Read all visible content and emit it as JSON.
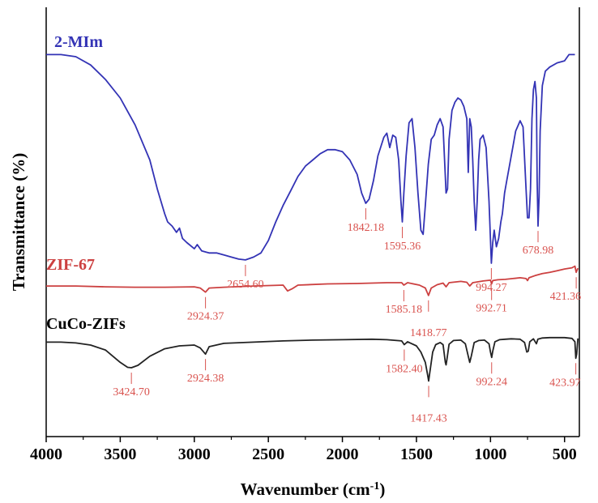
{
  "chart_data": {
    "type": "line",
    "xlabel": "Wavenumber (cm",
    "xlabel_sup": "-1",
    "xlabel_end": ")",
    "ylabel": "Transmittance (%)",
    "xlim": [
      4000,
      400
    ],
    "x_reversed": true,
    "x_ticks": [
      4000,
      3500,
      3000,
      2500,
      2000,
      1500,
      1000,
      500
    ],
    "x_tick_labels": [
      "4000",
      "3500",
      "3000",
      "2500",
      "2000",
      "1500",
      "1000",
      "500"
    ],
    "ylim": [
      0,
      100
    ],
    "y_ticks_shown": false,
    "grid": false,
    "colors": {
      "peak_annotation": "#d9534f",
      "axis": "#000000"
    },
    "series": [
      {
        "name": "2-MIm",
        "color": "#3333b5",
        "label_color": "#3333b5",
        "points": [
          [
            4000,
            90.5
          ],
          [
            3900,
            90.5
          ],
          [
            3800,
            90
          ],
          [
            3700,
            88
          ],
          [
            3600,
            84.5
          ],
          [
            3500,
            80
          ],
          [
            3400,
            73.5
          ],
          [
            3300,
            65
          ],
          [
            3250,
            58
          ],
          [
            3200,
            52
          ],
          [
            3180,
            50
          ],
          [
            3150,
            49
          ],
          [
            3120,
            47.5
          ],
          [
            3100,
            48.5
          ],
          [
            3080,
            46
          ],
          [
            3050,
            45
          ],
          [
            3000,
            43.5
          ],
          [
            2980,
            44.5
          ],
          [
            2950,
            43
          ],
          [
            2900,
            42.5
          ],
          [
            2850,
            42.5
          ],
          [
            2800,
            42
          ],
          [
            2750,
            41.5
          ],
          [
            2700,
            41
          ],
          [
            2654.6,
            40.8
          ],
          [
            2600,
            41.5
          ],
          [
            2550,
            42.5
          ],
          [
            2500,
            45.5
          ],
          [
            2450,
            50
          ],
          [
            2400,
            54
          ],
          [
            2350,
            57.5
          ],
          [
            2300,
            61
          ],
          [
            2250,
            63.5
          ],
          [
            2200,
            65
          ],
          [
            2150,
            66.5
          ],
          [
            2100,
            67.5
          ],
          [
            2050,
            67.5
          ],
          [
            2000,
            67
          ],
          [
            1950,
            65
          ],
          [
            1900,
            61.5
          ],
          [
            1870,
            57
          ],
          [
            1842.18,
            54.5
          ],
          [
            1820,
            55.5
          ],
          [
            1790,
            60
          ],
          [
            1760,
            66
          ],
          [
            1720,
            70.5
          ],
          [
            1700,
            71.5
          ],
          [
            1680,
            68
          ],
          [
            1660,
            71
          ],
          [
            1640,
            70.5
          ],
          [
            1620,
            65
          ],
          [
            1605,
            55
          ],
          [
            1595.36,
            50
          ],
          [
            1585,
            57
          ],
          [
            1570,
            66
          ],
          [
            1550,
            74
          ],
          [
            1530,
            75
          ],
          [
            1510,
            68
          ],
          [
            1490,
            57
          ],
          [
            1470,
            48
          ],
          [
            1455,
            47
          ],
          [
            1440,
            54
          ],
          [
            1420,
            64
          ],
          [
            1400,
            70
          ],
          [
            1380,
            71
          ],
          [
            1360,
            73.5
          ],
          [
            1340,
            75
          ],
          [
            1320,
            73
          ],
          [
            1300,
            57
          ],
          [
            1290,
            58
          ],
          [
            1280,
            70
          ],
          [
            1260,
            77
          ],
          [
            1240,
            79
          ],
          [
            1220,
            80
          ],
          [
            1200,
            79.5
          ],
          [
            1180,
            78
          ],
          [
            1160,
            75
          ],
          [
            1150,
            62
          ],
          [
            1140,
            75
          ],
          [
            1130,
            73
          ],
          [
            1120,
            65
          ],
          [
            1110,
            55
          ],
          [
            1100,
            48
          ],
          [
            1090,
            55
          ],
          [
            1080,
            65
          ],
          [
            1070,
            70
          ],
          [
            1050,
            71
          ],
          [
            1030,
            68
          ],
          [
            1010,
            55
          ],
          [
            994.27,
            40
          ],
          [
            985,
            45
          ],
          [
            975,
            48
          ],
          [
            960,
            44
          ],
          [
            945,
            46
          ],
          [
            930,
            50
          ],
          [
            920,
            52
          ],
          [
            905,
            57
          ],
          [
            890,
            60
          ],
          [
            870,
            64
          ],
          [
            850,
            68
          ],
          [
            830,
            72
          ],
          [
            800,
            74.5
          ],
          [
            780,
            73
          ],
          [
            760,
            58
          ],
          [
            750,
            51
          ],
          [
            740,
            51
          ],
          [
            730,
            58
          ],
          [
            720,
            75
          ],
          [
            710,
            82
          ],
          [
            700,
            84
          ],
          [
            690,
            80
          ],
          [
            685,
            60
          ],
          [
            678.98,
            49
          ],
          [
            672,
            56
          ],
          [
            665,
            72
          ],
          [
            650,
            83
          ],
          [
            630,
            86.5
          ],
          [
            600,
            87.5
          ],
          [
            550,
            88.5
          ],
          [
            500,
            89
          ],
          [
            470,
            90.5
          ],
          [
            430,
            90.5
          ]
        ],
        "annotations": [
          {
            "x": 2654.6,
            "label": "2654.60",
            "label_pos": "below"
          },
          {
            "x": 1842.18,
            "label": "1842.18",
            "label_pos": "below"
          },
          {
            "x": 1595.36,
            "label": "1595.36",
            "label_pos": "below"
          },
          {
            "x": 994.27,
            "label": "994.27",
            "label_pos": "below"
          },
          {
            "x": 678.98,
            "label": "678.98",
            "label_pos": "below"
          }
        ]
      },
      {
        "name": "ZIF-67",
        "color": "#cc4040",
        "label_color": "#cc4040",
        "points": [
          [
            4000,
            34.5
          ],
          [
            3800,
            34.5
          ],
          [
            3600,
            34.3
          ],
          [
            3400,
            34.2
          ],
          [
            3200,
            34.2
          ],
          [
            3000,
            34.3
          ],
          [
            2960,
            34
          ],
          [
            2924.37,
            33
          ],
          [
            2900,
            34
          ],
          [
            2800,
            34.2
          ],
          [
            2600,
            34.5
          ],
          [
            2400,
            34.7
          ],
          [
            2370,
            33.3
          ],
          [
            2340,
            33.8
          ],
          [
            2300,
            34.7
          ],
          [
            2100,
            35
          ],
          [
            1900,
            35.1
          ],
          [
            1700,
            35.3
          ],
          [
            1600,
            35.3
          ],
          [
            1585.18,
            34.7
          ],
          [
            1560,
            35.3
          ],
          [
            1480,
            34.7
          ],
          [
            1440,
            34
          ],
          [
            1418.77,
            32.2
          ],
          [
            1400,
            34
          ],
          [
            1360,
            34.8
          ],
          [
            1320,
            35.2
          ],
          [
            1300,
            34.3
          ],
          [
            1280,
            35.3
          ],
          [
            1200,
            35.6
          ],
          [
            1160,
            35.4
          ],
          [
            1140,
            34.5
          ],
          [
            1120,
            35.3
          ],
          [
            1050,
            35.7
          ],
          [
            1000,
            35.9
          ],
          [
            992.71,
            35
          ],
          [
            985,
            35.8
          ],
          [
            950,
            36
          ],
          [
            900,
            36.1
          ],
          [
            850,
            36.3
          ],
          [
            800,
            36.5
          ],
          [
            760,
            36.3
          ],
          [
            750,
            35.8
          ],
          [
            740,
            36.5
          ],
          [
            700,
            37
          ],
          [
            650,
            37.5
          ],
          [
            600,
            37.8
          ],
          [
            550,
            38.2
          ],
          [
            500,
            38.6
          ],
          [
            450,
            38.9
          ],
          [
            430,
            39.3
          ],
          [
            421.36,
            37.8
          ],
          [
            410,
            38.8
          ]
        ],
        "annotations": [
          {
            "x": 2924.37,
            "label": "2924.37",
            "label_pos": "below"
          },
          {
            "x": 1585.18,
            "label": "1585.18",
            "label_pos": "below"
          },
          {
            "x": 1418.77,
            "label": "1418.77",
            "label_pos": "below-far"
          },
          {
            "x": 992.71,
            "label": "992.71",
            "label_pos": "below"
          },
          {
            "x": 421.36,
            "label": "421.36",
            "label_pos": "below"
          }
        ]
      },
      {
        "name": "CuCo-ZIFs",
        "color": "#222222",
        "label_color": "#000000",
        "points": [
          [
            4000,
            20.9
          ],
          [
            3900,
            20.9
          ],
          [
            3800,
            20.7
          ],
          [
            3700,
            20.2
          ],
          [
            3600,
            19
          ],
          [
            3550,
            17.5
          ],
          [
            3500,
            16
          ],
          [
            3450,
            14.8
          ],
          [
            3424.7,
            14.7
          ],
          [
            3380,
            15.3
          ],
          [
            3300,
            17.5
          ],
          [
            3200,
            19.3
          ],
          [
            3100,
            20
          ],
          [
            3000,
            20.2
          ],
          [
            2960,
            19.5
          ],
          [
            2924.38,
            18
          ],
          [
            2900,
            19.8
          ],
          [
            2800,
            20.6
          ],
          [
            2600,
            20.9
          ],
          [
            2400,
            21.2
          ],
          [
            2200,
            21.4
          ],
          [
            2000,
            21.5
          ],
          [
            1800,
            21.6
          ],
          [
            1700,
            21.5
          ],
          [
            1600,
            21.2
          ],
          [
            1582.4,
            20.3
          ],
          [
            1560,
            21
          ],
          [
            1500,
            20
          ],
          [
            1470,
            18.5
          ],
          [
            1440,
            16
          ],
          [
            1425,
            13
          ],
          [
            1417.43,
            11.5
          ],
          [
            1410,
            13.5
          ],
          [
            1390,
            18.5
          ],
          [
            1370,
            20.3
          ],
          [
            1340,
            20.8
          ],
          [
            1320,
            20.3
          ],
          [
            1305,
            16
          ],
          [
            1300,
            15.4
          ],
          [
            1295,
            16.5
          ],
          [
            1280,
            20.4
          ],
          [
            1250,
            21.3
          ],
          [
            1200,
            21.4
          ],
          [
            1170,
            20.5
          ],
          [
            1150,
            17.5
          ],
          [
            1140,
            16
          ],
          [
            1130,
            17.5
          ],
          [
            1110,
            20.8
          ],
          [
            1080,
            21.3
          ],
          [
            1040,
            21.4
          ],
          [
            1010,
            20.5
          ],
          [
            1000,
            18.5
          ],
          [
            992.24,
            17.2
          ],
          [
            985,
            18.7
          ],
          [
            970,
            21
          ],
          [
            940,
            21.5
          ],
          [
            900,
            21.6
          ],
          [
            860,
            21.7
          ],
          [
            800,
            21.6
          ],
          [
            770,
            20.8
          ],
          [
            755,
            18.5
          ],
          [
            745,
            18.7
          ],
          [
            735,
            21
          ],
          [
            710,
            21.7
          ],
          [
            690,
            20.5
          ],
          [
            680,
            21.6
          ],
          [
            650,
            21.9
          ],
          [
            600,
            22
          ],
          [
            550,
            22
          ],
          [
            500,
            22
          ],
          [
            450,
            21.8
          ],
          [
            430,
            21
          ],
          [
            423.97,
            17
          ],
          [
            418,
            18
          ],
          [
            410,
            21.8
          ]
        ],
        "annotations": [
          {
            "x": 3424.7,
            "label": "3424.70",
            "label_pos": "below"
          },
          {
            "x": 2924.38,
            "label": "2924.38",
            "label_pos": "below"
          },
          {
            "x": 1582.4,
            "label": "1582.40",
            "label_pos": "below"
          },
          {
            "x": 1417.43,
            "label": "1417.43",
            "label_pos": "below-far"
          },
          {
            "x": 992.24,
            "label": "992.24",
            "label_pos": "below"
          },
          {
            "x": 423.97,
            "label": "423.97",
            "label_pos": "below"
          }
        ]
      }
    ]
  }
}
